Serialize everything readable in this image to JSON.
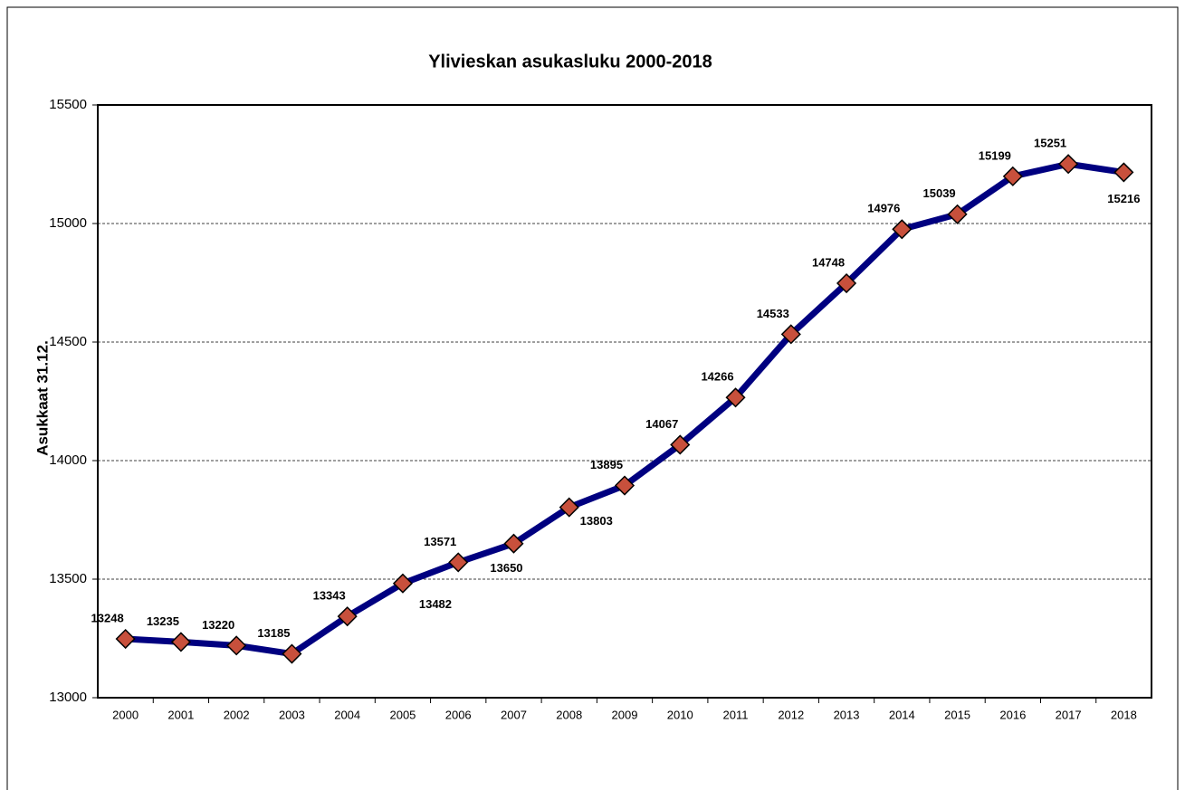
{
  "chart_data": {
    "type": "line",
    "title": "Ylivieskan  asukasluku  2000-2018",
    "y_label": "Asukkaat  31.12.",
    "categories": [
      "2000",
      "2001",
      "2002",
      "2003",
      "2004",
      "2005",
      "2006",
      "2007",
      "2008",
      "2009",
      "2010",
      "2011",
      "2012",
      "2013",
      "2014",
      "2015",
      "2016",
      "2017",
      "2018"
    ],
    "series": [
      {
        "name": "Asukkaat",
        "color": "#000080",
        "marker_color": "#c8503c",
        "values": [
          13248,
          13235,
          13220,
          13185,
          13343,
          13482,
          13571,
          13650,
          13803,
          13895,
          14067,
          14266,
          14533,
          14748,
          14976,
          15039,
          15199,
          15251,
          15216
        ]
      }
    ],
    "ylim": [
      13000,
      15500
    ],
    "yticks": [
      13000,
      13500,
      14000,
      14500,
      15000,
      15500
    ],
    "grid": true
  }
}
